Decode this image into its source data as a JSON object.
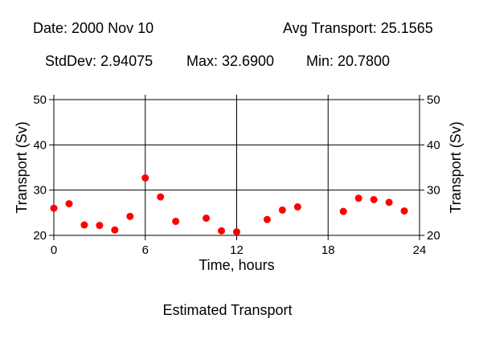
{
  "header": {
    "date": "Date: 2000 Nov 10",
    "avg": "Avg Transport: 25.1565",
    "stddev": "StdDev: 2.94075",
    "max": "Max: 32.6900",
    "min": "Min: 20.7800"
  },
  "caption": "Estimated Transport",
  "chart_data": {
    "type": "scatter",
    "title": "",
    "xlabel": "Time, hours",
    "ylabel": "Transport (Sv)",
    "xlim": [
      0,
      24
    ],
    "ylim": [
      20,
      50
    ],
    "xticks": [
      0,
      6,
      12,
      18,
      24
    ],
    "yticks": [
      20,
      30,
      40,
      50
    ],
    "grid": true,
    "marker_color": "#ff0000",
    "points": [
      {
        "x": 0,
        "y": 26.0
      },
      {
        "x": 1,
        "y": 27.0
      },
      {
        "x": 2,
        "y": 22.3
      },
      {
        "x": 3,
        "y": 22.2
      },
      {
        "x": 4,
        "y": 21.2
      },
      {
        "x": 5,
        "y": 24.2
      },
      {
        "x": 6,
        "y": 32.69
      },
      {
        "x": 7,
        "y": 28.5
      },
      {
        "x": 8,
        "y": 23.1
      },
      {
        "x": 10,
        "y": 23.8
      },
      {
        "x": 11,
        "y": 21.0
      },
      {
        "x": 12,
        "y": 20.78
      },
      {
        "x": 14,
        "y": 23.5
      },
      {
        "x": 15,
        "y": 25.6
      },
      {
        "x": 16,
        "y": 26.3
      },
      {
        "x": 19,
        "y": 25.3
      },
      {
        "x": 20,
        "y": 28.2
      },
      {
        "x": 21,
        "y": 27.9
      },
      {
        "x": 22,
        "y": 27.3
      },
      {
        "x": 23,
        "y": 25.4
      }
    ]
  }
}
